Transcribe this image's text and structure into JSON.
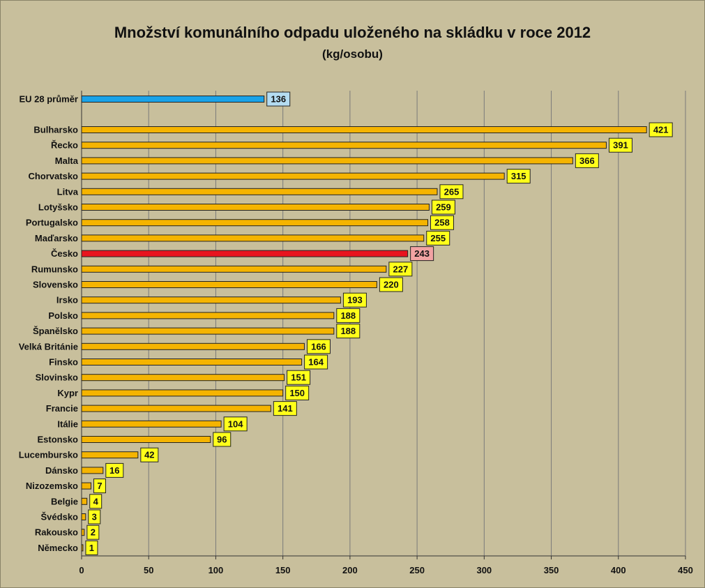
{
  "chart_data": {
    "type": "bar",
    "orientation": "horizontal",
    "title": "Množství komunálního odpadu uloženého na skládku v roce 2012",
    "subtitle": "(kg/osobu)",
    "xlim": [
      0,
      450
    ],
    "xticks": [
      0,
      50,
      100,
      150,
      200,
      250,
      300,
      350,
      400,
      450
    ],
    "grid": "vertical",
    "categories": [
      "EU 28 průměr",
      "Bulharsko",
      "Řecko",
      "Malta",
      "Chorvatsko",
      "Litva",
      "Lotyšsko",
      "Portugalsko",
      "Maďarsko",
      "Česko",
      "Rumunsko",
      "Slovensko",
      "Irsko",
      "Polsko",
      "Španělsko",
      "Velká Británie",
      "Finsko",
      "Slovinsko",
      "Kypr",
      "Francie",
      "Itálie",
      "Estonsko",
      "Lucembursko",
      "Dánsko",
      "Nizozemsko",
      "Belgie",
      "Švédsko",
      "Rakousko",
      "Německo"
    ],
    "values": [
      136,
      421,
      391,
      366,
      315,
      265,
      259,
      258,
      255,
      243,
      227,
      220,
      193,
      188,
      188,
      166,
      164,
      151,
      150,
      141,
      104,
      96,
      42,
      16,
      7,
      4,
      3,
      2,
      1
    ],
    "highlight": {
      "EU 28 průměr": {
        "bar": "#1aa3e8",
        "label_bg": "#b4dcf2"
      },
      "Česko": {
        "bar": "#e8141e",
        "label_bg": "#f2a3a3"
      }
    },
    "colors": {
      "bar": "#f5b400",
      "label_bg": "#ffff1a",
      "background": "#c8bf9c",
      "plot_background": "#c8bf9c",
      "grid": "#7a7a7a"
    }
  }
}
